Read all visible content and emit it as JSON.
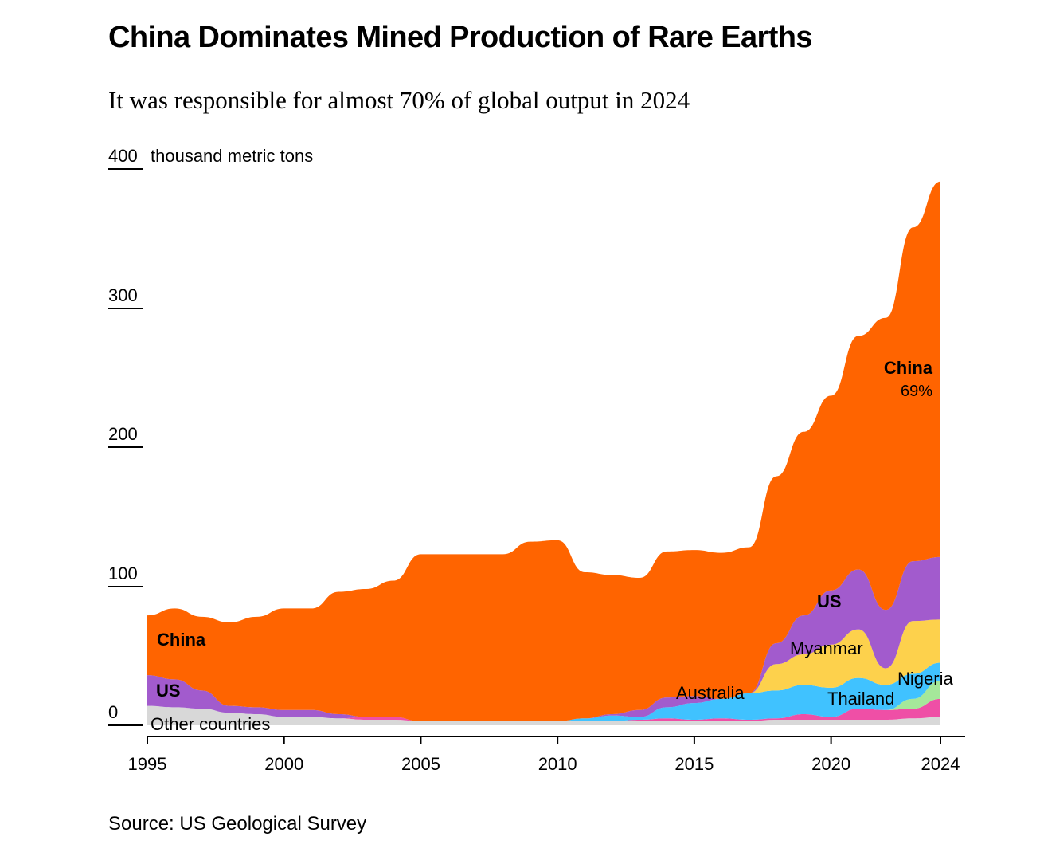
{
  "chart_data": {
    "type": "area",
    "stacked": true,
    "smooth": true,
    "title": "China Dominates Mined Production of Rare Earths",
    "subtitle": "It was responsible for almost 70% of global output in 2024",
    "source": "Source: US Geological Survey",
    "unit_label": "thousand metric tons",
    "ylim": [
      0,
      400
    ],
    "y_ticks": [
      0,
      100,
      200,
      300,
      400
    ],
    "x_ticks": [
      1995,
      2000,
      2005,
      2010,
      2015,
      2020,
      2024
    ],
    "x": [
      1995,
      1996,
      1997,
      1998,
      1999,
      2000,
      2001,
      2002,
      2003,
      2004,
      2005,
      2006,
      2007,
      2008,
      2009,
      2010,
      2011,
      2012,
      2013,
      2014,
      2015,
      2016,
      2017,
      2018,
      2019,
      2020,
      2021,
      2022,
      2023,
      2024
    ],
    "series": [
      {
        "name": "Other countries",
        "color": "#d8d8d8",
        "values": [
          14,
          13,
          12,
          9,
          8,
          6,
          6,
          5,
          4,
          4,
          3,
          3,
          3,
          3,
          3,
          3,
          3,
          3,
          3,
          3,
          3,
          3,
          3,
          4,
          4,
          4,
          4,
          4,
          5,
          6
        ]
      },
      {
        "name": "Thailand",
        "color": "#ef4fa6",
        "values": [
          0,
          0,
          0,
          0,
          0,
          0,
          0,
          0,
          2,
          2,
          0,
          0,
          0,
          0,
          0,
          0,
          0,
          0,
          1,
          2,
          1,
          2,
          1,
          1,
          4,
          2,
          8,
          7,
          7,
          13
        ]
      },
      {
        "name": "Nigeria",
        "color": "#a5e89a",
        "values": [
          0,
          0,
          0,
          0,
          0,
          0,
          0,
          0,
          0,
          0,
          0,
          0,
          0,
          0,
          0,
          0,
          0,
          0,
          0,
          0,
          0,
          0,
          0,
          0,
          0,
          0,
          0,
          0,
          7,
          13
        ]
      },
      {
        "name": "Australia",
        "color": "#40c2ff",
        "values": [
          0,
          0,
          0,
          0,
          0,
          0,
          0,
          0,
          0,
          0,
          0,
          0,
          0,
          0,
          0,
          0,
          2,
          4,
          2,
          8,
          12,
          14,
          19,
          20,
          21,
          21,
          22,
          18,
          18,
          13
        ]
      },
      {
        "name": "Myanmar",
        "color": "#fdd14c",
        "values": [
          0,
          0,
          0,
          0,
          0,
          0,
          0,
          0,
          0,
          0,
          0,
          0,
          0,
          0,
          0,
          0,
          0,
          0,
          0,
          0,
          0,
          0,
          0,
          19,
          22,
          31,
          35,
          12,
          38,
          31
        ]
      },
      {
        "name": "US",
        "color": "#a25bcd",
        "values": [
          22,
          20,
          13,
          5,
          5,
          5,
          5,
          3,
          0,
          0,
          0,
          0,
          0,
          0,
          0,
          0,
          0,
          1,
          5,
          7,
          5,
          0,
          0,
          15,
          28,
          39,
          43,
          42,
          43,
          45
        ]
      },
      {
        "name": "China",
        "color": "#ff6400",
        "values": [
          43,
          51,
          53,
          60,
          65,
          73,
          73,
          88,
          92,
          98,
          120,
          120,
          120,
          120,
          129,
          130,
          105,
          100,
          95,
          105,
          105,
          105,
          105,
          120,
          132,
          140,
          168,
          210,
          240,
          270
        ]
      }
    ],
    "labels": {
      "china_left": "China",
      "us_left": "US",
      "other": "Other countries",
      "china_right": "China",
      "china_share": "69%",
      "us_right": "US",
      "myanmar": "Myanmar",
      "australia": "Australia",
      "thailand": "Thailand",
      "nigeria": "Nigeria"
    }
  }
}
